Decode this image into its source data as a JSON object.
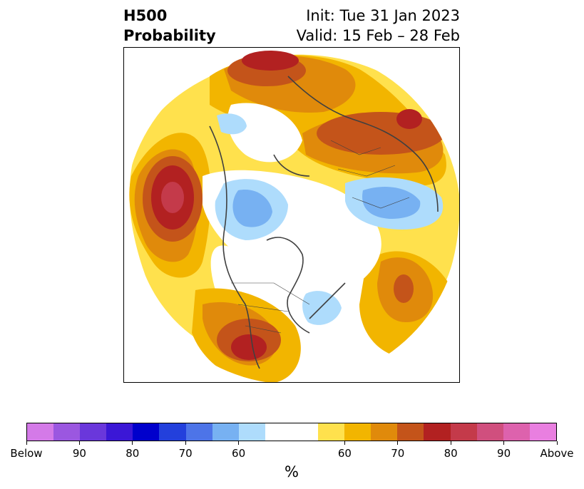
{
  "title": {
    "left_line1": "H500",
    "left_line2": "Probability",
    "right_line1": "Init: Tue 31 Jan 2023",
    "right_line2": "Valid: 15 Feb – 28 Feb"
  },
  "map": {
    "projection": "north-polar stereographic",
    "field": "500 hPa height probability",
    "region": "Northern Hemisphere"
  },
  "colorbar": {
    "below_colors": [
      "#d47ae8",
      "#9b57e0",
      "#6a37db",
      "#3b17d6",
      "#0000cc",
      "#2340dc",
      "#4d74e8",
      "#77b1f2",
      "#aedcfc"
    ],
    "above_colors": [
      "#ffe14d",
      "#f2b500",
      "#e08a0b",
      "#c4541a",
      "#b22121",
      "#c43a4a",
      "#d04f7e",
      "#dd62ad",
      "#e97fe0"
    ],
    "neutral_color": "#ffffff",
    "ticks": [
      "Below",
      "90",
      "80",
      "70",
      "60",
      "60",
      "70",
      "80",
      "90",
      "Above"
    ],
    "unit_label": "%"
  }
}
